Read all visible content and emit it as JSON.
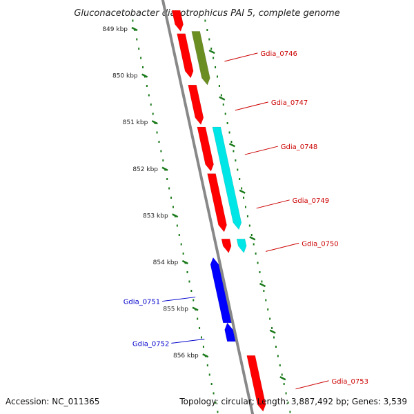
{
  "title": "Gluconacetobacter diazotrophicus PAI 5, complete genome",
  "footer": {
    "accession": "Accession: NC_011365",
    "summary": "Topology: circular; Length: 3,887,492 bp; Genes: 3,539"
  },
  "colors": {
    "backbone": "#888888",
    "tick": "#1a7a1a",
    "forward_label": "#cc0000",
    "reverse_label": "#0000cc"
  },
  "scale": {
    "ticks": [
      {
        "label": "849 kbp",
        "kbp": 849
      },
      {
        "label": "850 kbp",
        "kbp": 850
      },
      {
        "label": "851 kbp",
        "kbp": 851
      },
      {
        "label": "852 kbp",
        "kbp": 852
      },
      {
        "label": "853 kbp",
        "kbp": 853
      },
      {
        "label": "854 kbp",
        "kbp": 854
      },
      {
        "label": "855 kbp",
        "kbp": 855
      },
      {
        "label": "856 kbp",
        "kbp": 856
      }
    ]
  },
  "genes": [
    {
      "name": "Gdia_0745_part",
      "label": "",
      "strand": "+",
      "start": 848.6,
      "end": 849.05,
      "color": "#ff0000"
    },
    {
      "name": "Gdia_0746",
      "label": "Gdia_0746",
      "strand": "+",
      "start": 849.1,
      "end": 850.05,
      "color": "#ff0000"
    },
    {
      "name": "Gdia_0746_feature",
      "label": "",
      "strand": "+",
      "start": 849.05,
      "end": 850.2,
      "color": "#6b8e23",
      "track": "outer"
    },
    {
      "name": "Gdia_0747",
      "label": "Gdia_0747",
      "strand": "+",
      "start": 850.2,
      "end": 851.05,
      "color": "#ff0000"
    },
    {
      "name": "Gdia_0748",
      "label": "Gdia_0748",
      "strand": "+",
      "start": 851.1,
      "end": 852.05,
      "color": "#ff0000"
    },
    {
      "name": "Gdia_0748_feature",
      "label": "",
      "strand": "+",
      "start": 851.1,
      "end": 853.3,
      "color": "#00e5e5",
      "track": "outer"
    },
    {
      "name": "Gdia_0749",
      "label": "Gdia_0749",
      "strand": "+",
      "start": 852.1,
      "end": 853.35,
      "color": "#ff0000"
    },
    {
      "name": "Gdia_0750",
      "label": "Gdia_0750",
      "strand": "+",
      "start": 853.5,
      "end": 853.8,
      "color": "#ff0000"
    },
    {
      "name": "Gdia_0750_feature",
      "label": "",
      "strand": "+",
      "start": 853.5,
      "end": 853.8,
      "color": "#00e5e5",
      "track": "outer"
    },
    {
      "name": "Gdia_0751",
      "label": "Gdia_0751",
      "strand": "-",
      "start": 853.9,
      "end": 855.3,
      "color": "#0000ff"
    },
    {
      "name": "Gdia_0752",
      "label": "Gdia_0752",
      "strand": "-",
      "start": 855.3,
      "end": 855.7,
      "color": "#0000ff"
    },
    {
      "name": "Gdia_0753",
      "label": "Gdia_0753",
      "strand": "+",
      "start": 856.0,
      "end": 857.2,
      "color": "#ff0000"
    }
  ]
}
